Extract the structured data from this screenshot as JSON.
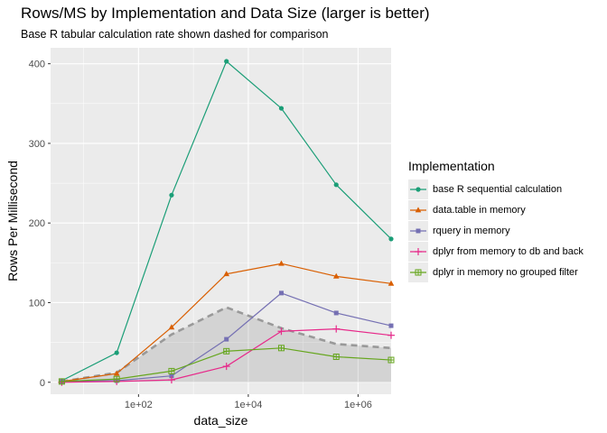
{
  "chart_data": {
    "type": "line",
    "title": "Rows/MS by Implementation and Data Size (larger is better)",
    "subtitle": "Base R tabular calculation rate shown dashed for comparison",
    "xlabel": "data_size",
    "ylabel": "Rows Per Millisecond",
    "x_scale": "log10",
    "x": [
      4,
      40,
      400,
      4000,
      40000,
      400000,
      4000000
    ],
    "xlim": [
      2.5,
      4000000
    ],
    "ylim": [
      -15,
      420
    ],
    "x_ticks": [
      100,
      10000,
      1000000
    ],
    "x_tick_labels": [
      "1e+02",
      "1e+04",
      "1e+06"
    ],
    "y_ticks": [
      0,
      100,
      200,
      300,
      400
    ],
    "y_tick_labels": [
      "0",
      "100",
      "200",
      "300",
      "400"
    ],
    "grid": true,
    "legend_title": "Implementation",
    "legend_position": "right",
    "series": [
      {
        "name": "base R sequential calculation",
        "color": "#1b9e77",
        "marker": "circle",
        "values": [
          2,
          37,
          235,
          403,
          344,
          248,
          180
        ]
      },
      {
        "name": "data.table in memory",
        "color": "#d95f02",
        "marker": "triangle",
        "values": [
          1,
          11,
          69,
          136,
          149,
          133,
          124
        ]
      },
      {
        "name": "rquery in memory",
        "color": "#7570b3",
        "marker": "square",
        "values": [
          1,
          2,
          8,
          54,
          112,
          87,
          71
        ]
      },
      {
        "name": "dplyr from memory to db and back",
        "color": "#e7298a",
        "marker": "plus",
        "values": [
          0,
          1,
          3,
          20,
          64,
          67,
          59
        ]
      },
      {
        "name": "dplyr in memory no grouped filter",
        "color": "#66a61e",
        "marker": "square-cross",
        "values": [
          1,
          4,
          14,
          39,
          43,
          32,
          28
        ]
      }
    ],
    "reference": {
      "description": "Base R tabular calculation rate",
      "style": "dashed",
      "color": "#999999",
      "values": [
        1,
        12,
        60,
        94,
        68,
        48,
        43
      ]
    }
  }
}
